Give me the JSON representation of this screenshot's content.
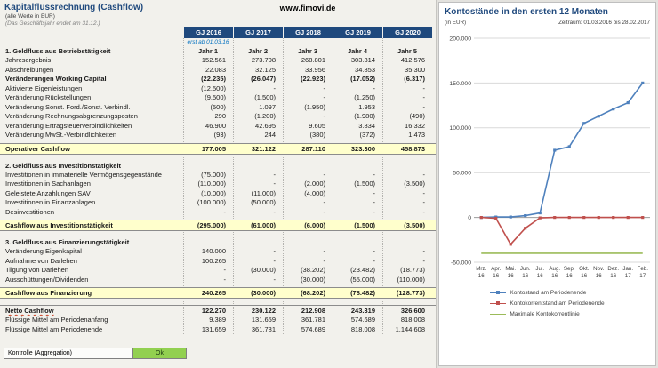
{
  "header": {
    "title": "Kapitalflussrechnung (Cashflow)",
    "subtitle": "(alle Werte in EUR)",
    "fiscal_note": "(Das Geschäftsjahr endet am 31.12.)",
    "website": "www.fimovi.de"
  },
  "table": {
    "col_headers": [
      "GJ 2016",
      "GJ 2017",
      "GJ 2018",
      "GJ 2019",
      "GJ 2020"
    ],
    "start_note": "erst ab 01.03.16",
    "year_labels": [
      "Jahr 1",
      "Jahr 2",
      "Jahr 3",
      "Jahr 4",
      "Jahr 5"
    ],
    "sections": [
      {
        "heading": "1. Geldfluss aus Betriebstätigkeit",
        "rows": [
          {
            "label": "Jahresergebnis",
            "values": [
              "152.561",
              "273.708",
              "268.801",
              "303.314",
              "412.576"
            ]
          },
          {
            "label": "Abschreibungen",
            "values": [
              "22.083",
              "32.125",
              "33.956",
              "34.853",
              "35.300"
            ]
          },
          {
            "label": "Veränderungen Working Capital",
            "bold": true,
            "values": [
              "(22.235)",
              "(26.047)",
              "(22.923)",
              "(17.052)",
              "(6.317)"
            ]
          },
          {
            "label": "Aktivierte Eigenleistungen",
            "values": [
              "(12.500)",
              "-",
              "-",
              "-",
              "-"
            ]
          },
          {
            "label": "Veränderung Rückstellungen",
            "values": [
              "(9.500)",
              "(1.500)",
              "-",
              "(1.250)",
              "-"
            ]
          },
          {
            "label": "Veränderung Sonst. Ford./Sonst. Verbindl.",
            "values": [
              "(500)",
              "1.097",
              "(1.950)",
              "1.953",
              "-"
            ]
          },
          {
            "label": "Veränderung Rechnungsabgrenzungsposten",
            "values": [
              "290",
              "(1.200)",
              "-",
              "(1.980)",
              "(490)"
            ]
          },
          {
            "label": "Veränderung Ertragsteuerverbindlichkeiten",
            "values": [
              "46.900",
              "42.695",
              "9.605",
              "3.834",
              "16.332"
            ]
          },
          {
            "label": "Veränderung MwSt.-Verbindlichkeiten",
            "values": [
              "(93)",
              "244",
              "(380)",
              "(372)",
              "1.473"
            ]
          }
        ],
        "total": {
          "label": "Operativer Cashflow",
          "values": [
            "177.005",
            "321.122",
            "287.110",
            "323.300",
            "458.873"
          ]
        }
      },
      {
        "heading": "2. Geldfluss aus Investitionstätigkeit",
        "rows": [
          {
            "label": "Investitionen in immaterielle Vermögensgegenstände",
            "values": [
              "(75.000)",
              "-",
              "-",
              "-",
              "-"
            ]
          },
          {
            "label": "Investitionen in Sachanlagen",
            "values": [
              "(110.000)",
              "-",
              "(2.000)",
              "(1.500)",
              "(3.500)"
            ]
          },
          {
            "label": "Geleistete Anzahlungen SAV",
            "values": [
              "(10.000)",
              "(11.000)",
              "(4.000)",
              "-",
              "-"
            ]
          },
          {
            "label": "Investitionen in Finanzanlagen",
            "values": [
              "(100.000)",
              "(50.000)",
              "-",
              "-",
              "-"
            ]
          },
          {
            "label": "Desinvestitionen",
            "values": [
              "-",
              "-",
              "-",
              "-",
              "-"
            ]
          }
        ],
        "total": {
          "label": "Cashflow aus Investitionstätigkeit",
          "values": [
            "(295.000)",
            "(61.000)",
            "(6.000)",
            "(1.500)",
            "(3.500)"
          ]
        }
      },
      {
        "heading": "3. Geldfluss aus Finanzierungstätigkeit",
        "rows": [
          {
            "label": "Veränderung Eigenkapital",
            "values": [
              "140.000",
              "-",
              "-",
              "-",
              "-"
            ]
          },
          {
            "label": "Aufnahme von Darlehen",
            "values": [
              "100.265",
              "-",
              "-",
              "-",
              "-"
            ]
          },
          {
            "label": "Tilgung von Darlehen",
            "values": [
              "-",
              "(30.000)",
              "(38.202)",
              "(23.482)",
              "(18.773)"
            ]
          },
          {
            "label": "Ausschüttungen/Dividenden",
            "values": [
              "-",
              "-",
              "(30.000)",
              "(55.000)",
              "(110.000)"
            ]
          }
        ],
        "total": {
          "label": "Cashflow aus Finanzierung",
          "values": [
            "240.265",
            "(30.000)",
            "(68.202)",
            "(78.482)",
            "(128.773)"
          ]
        }
      }
    ],
    "netto": {
      "label": "Netto Cashflow",
      "values": [
        "122.270",
        "230.122",
        "212.908",
        "243.319",
        "326.600"
      ]
    },
    "closing_rows": [
      {
        "label": "Flüssige Mittel am Periodenanfang",
        "values": [
          "9.389",
          "131.659",
          "361.781",
          "574.689",
          "818.008"
        ]
      },
      {
        "label": "Flüssige Mittel am Periodenende",
        "values": [
          "131.659",
          "361.781",
          "574.689",
          "818.008",
          "1.144.608"
        ]
      }
    ],
    "control": {
      "label": "Kontrolle (Aggregation)",
      "value": "Ok"
    }
  },
  "chart": {
    "title": "Kontostände in den ersten 12 Monaten",
    "unit": "(in EUR)",
    "period": "Zeitraum: 01.03.2016 bis 28.02.2017"
  },
  "chart_data": {
    "type": "line",
    "categories": [
      "Mrz. 16",
      "Apr. 16",
      "Mai. 16",
      "Jun. 16",
      "Jul. 16",
      "Aug. 16",
      "Sep. 16",
      "Okt. 16",
      "Nov. 16",
      "Dez. 16",
      "Jan. 17",
      "Feb. 17"
    ],
    "series": [
      {
        "name": "Kontostand am Periodenende",
        "color": "#4F81BD",
        "marker": true,
        "values": [
          0,
          500,
          500,
          2000,
          5000,
          75000,
          79000,
          105000,
          113000,
          121000,
          128000,
          150000
        ]
      },
      {
        "name": "Kontokorrentstand am Periodenende",
        "color": "#C0504D",
        "marker": true,
        "values": [
          0,
          -1000,
          -30000,
          -12000,
          -500,
          0,
          0,
          0,
          0,
          0,
          0,
          0
        ]
      },
      {
        "name": "Maximale Kontokorrentlinie",
        "color": "#9BBB59",
        "marker": false,
        "values": [
          -40000,
          -40000,
          -40000,
          -40000,
          -40000,
          -40000,
          -40000,
          -40000,
          -40000,
          -40000,
          -40000,
          -40000
        ]
      }
    ],
    "ylim": [
      -50000,
      200000
    ],
    "yticks": [
      {
        "value": 200000,
        "label": "200.000"
      },
      {
        "value": 150000,
        "label": "150.000"
      },
      {
        "value": 100000,
        "label": "100.000"
      },
      {
        "value": 50000,
        "label": "50.000"
      },
      {
        "value": 0,
        "label": "0"
      },
      {
        "value": -50000,
        "label": "-50.000"
      }
    ],
    "grid": true,
    "legend_position": "bottom"
  }
}
